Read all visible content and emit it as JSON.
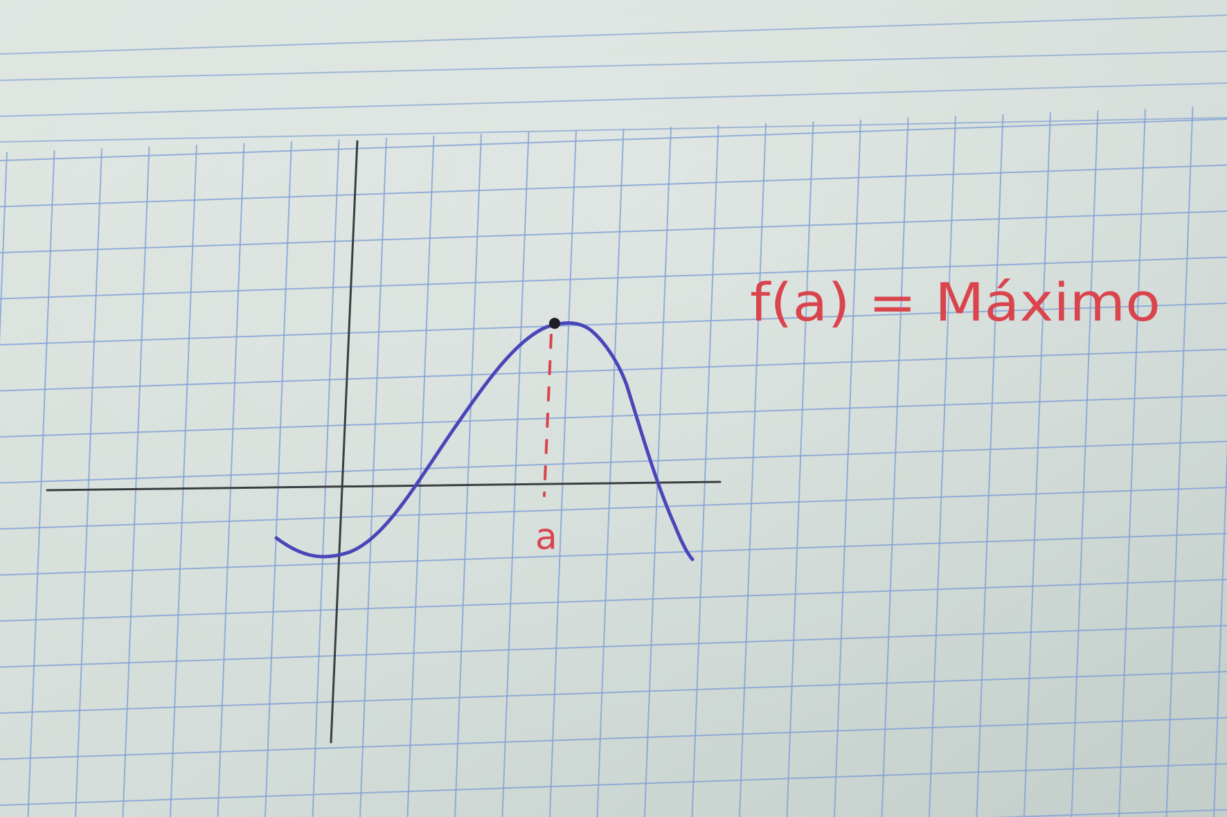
{
  "diagram": {
    "equation_text": "f(a) = Máximo",
    "x_point_label": "a"
  },
  "colors": {
    "paper": "#d5dedb",
    "paper_light": "#dfe6e3",
    "grid": "#7f9fd6",
    "ruled_lines": "#8ba6d3",
    "axes": "#3a3d40",
    "curve": "#4b46b8",
    "annotation": "#d9444d",
    "point": "#1f1f25"
  }
}
